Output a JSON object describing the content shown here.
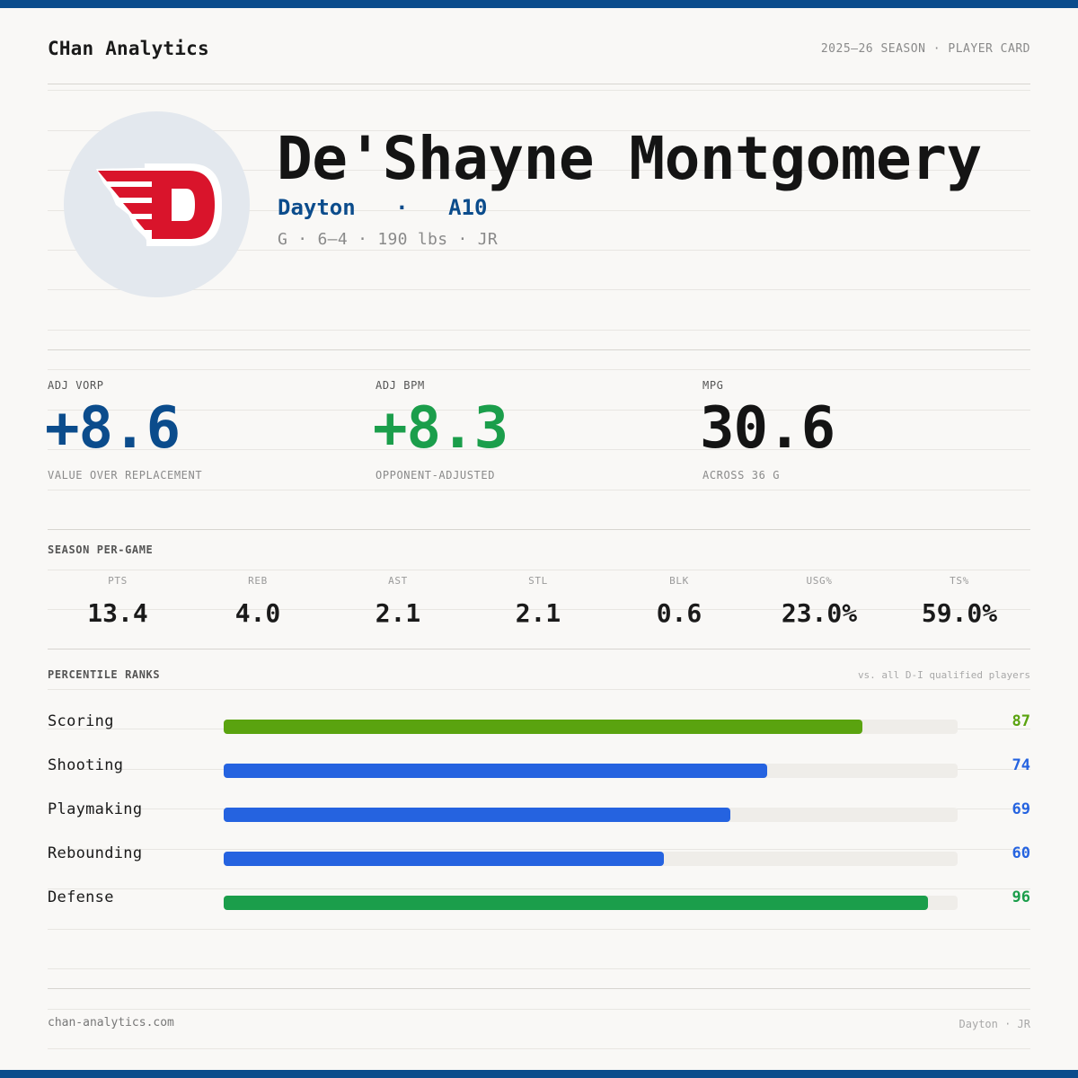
{
  "colors": {
    "brand_blue": "#0b4c8c",
    "green": "#1b9e4b",
    "scoring_green": "#5aa30f",
    "bar_blue": "#2563e0",
    "dayton_red": "#d9142b"
  },
  "header": {
    "brand": "CHan Analytics",
    "season": "2025–26 SEASON · PLAYER CARD"
  },
  "player": {
    "logo": "dayton-flyers-d-icon",
    "name": "De'Shayne Montgomery",
    "team": "Dayton",
    "separator": "·",
    "conference": "A10",
    "bio": "G · 6–4 · 190 lbs · JR"
  },
  "metrics": [
    {
      "label": "ADJ VORP",
      "value": "+8.6",
      "sub": "VALUE OVER REPLACEMENT"
    },
    {
      "label": "ADJ BPM",
      "value": "+8.3",
      "sub": "OPPONENT-ADJUSTED"
    },
    {
      "label": "MPG",
      "value": "30.6",
      "sub": "ACROSS 36 G"
    }
  ],
  "per_game": {
    "title": "SEASON PER-GAME",
    "stats": [
      {
        "label": "PTS",
        "value": "13.4"
      },
      {
        "label": "REB",
        "value": "4.0"
      },
      {
        "label": "AST",
        "value": "2.1"
      },
      {
        "label": "STL",
        "value": "2.1"
      },
      {
        "label": "BLK",
        "value": "0.6"
      },
      {
        "label": "USG%",
        "value": "23.0%"
      },
      {
        "label": "TS%",
        "value": "59.0%"
      }
    ]
  },
  "percentiles": {
    "title": "PERCENTILE RANKS",
    "note": "vs. all D-I qualified players",
    "max": 100,
    "rows": [
      {
        "label": "Scoring",
        "value": 87,
        "color": "#5aa30f"
      },
      {
        "label": "Shooting",
        "value": 74,
        "color": "#2563e0"
      },
      {
        "label": "Playmaking",
        "value": 69,
        "color": "#2563e0"
      },
      {
        "label": "Rebounding",
        "value": 60,
        "color": "#2563e0"
      },
      {
        "label": "Defense",
        "value": 96,
        "color": "#1b9e4b"
      }
    ]
  },
  "footer": {
    "site": "chan-analytics.com",
    "tag": "Dayton · JR"
  }
}
